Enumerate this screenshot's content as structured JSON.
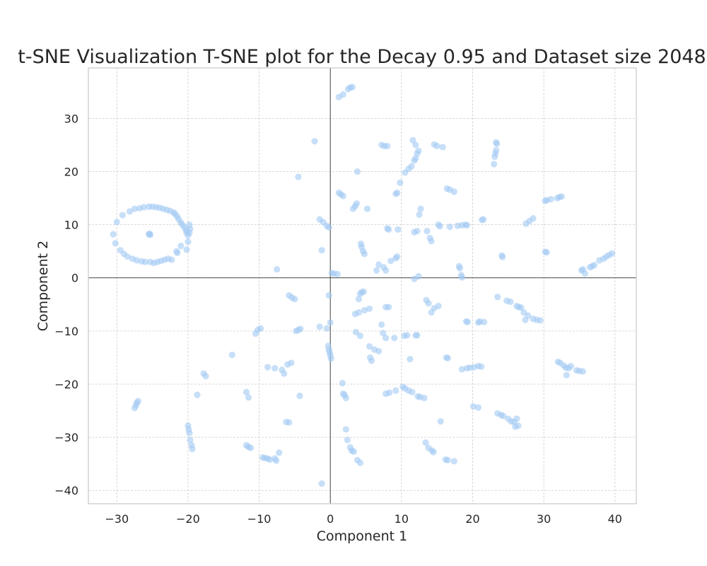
{
  "chart_data": {
    "type": "scatter",
    "title": "t-SNE Visualization T-SNE plot for the Decay 0.95 and Dataset size 2048",
    "xlabel": "Component 1",
    "ylabel": "Component 2",
    "xlim": [
      -34,
      43
    ],
    "ylim": [
      -42.5,
      39.5
    ],
    "xticks": [
      -30,
      -20,
      -10,
      0,
      10,
      20,
      30,
      40
    ],
    "yticks": [
      -40,
      -30,
      -20,
      -10,
      0,
      10,
      20,
      30
    ],
    "grid": true,
    "reference_lines": {
      "x": 0,
      "y": 0
    },
    "colors": {
      "point": "#a1c9f4",
      "grid": "#cccccc",
      "axis_frame": "#cccccc",
      "ref_line": "#333333"
    },
    "series": [
      {
        "name": "points",
        "points": [
          [
            -30.5,
            8.2
          ],
          [
            -30.2,
            6.5
          ],
          [
            -30,
            10.5
          ],
          [
            -29.5,
            5.2
          ],
          [
            -29.2,
            11.8
          ],
          [
            -29,
            4.5
          ],
          [
            -28.5,
            4
          ],
          [
            -28.2,
            12.5
          ],
          [
            -27.8,
            3.6
          ],
          [
            -27.5,
            13
          ],
          [
            -27.2,
            3.3
          ],
          [
            -26.8,
            13.1
          ],
          [
            -26.5,
            3.1
          ],
          [
            -26.2,
            13.3
          ],
          [
            -26,
            3
          ],
          [
            -25.5,
            13.4
          ],
          [
            -25.3,
            3
          ],
          [
            -25,
            13.4
          ],
          [
            -24.8,
            2.8
          ],
          [
            -24.5,
            13.3
          ],
          [
            -24.3,
            3
          ],
          [
            -24,
            13.2
          ],
          [
            -23.8,
            3.2
          ],
          [
            -23.5,
            13
          ],
          [
            -23.3,
            3.4
          ],
          [
            -23,
            12.8
          ],
          [
            -22.8,
            3.6
          ],
          [
            -22.5,
            12.6
          ],
          [
            -22.3,
            3.4
          ],
          [
            -22,
            12.3
          ],
          [
            -21.8,
            12
          ],
          [
            -21.5,
            11.5
          ],
          [
            -21.3,
            11
          ],
          [
            -21,
            10.4
          ],
          [
            -20.8,
            10
          ],
          [
            -20.5,
            9.5
          ],
          [
            -20.3,
            9
          ],
          [
            -20.2,
            8.5
          ],
          [
            -20,
            8
          ],
          [
            -19.8,
            8.5
          ],
          [
            -19.7,
            9.2
          ],
          [
            -19.8,
            10
          ],
          [
            -20,
            6.8
          ],
          [
            -20.2,
            5.3
          ],
          [
            -21,
            6
          ],
          [
            -21.5,
            4.7
          ],
          [
            -21.6,
            5
          ],
          [
            -25.5,
            8.2
          ],
          [
            -25.4,
            8.3
          ],
          [
            -25.3,
            8.1
          ],
          [
            -27.5,
            -24.5
          ],
          [
            -27.3,
            -24
          ],
          [
            -27.2,
            -23.5
          ],
          [
            -27,
            -23.2
          ],
          [
            -20,
            -27.8
          ],
          [
            -19.9,
            -28.5
          ],
          [
            -19.8,
            -29.2
          ],
          [
            -19.7,
            -30.5
          ],
          [
            -19.5,
            -31.5
          ],
          [
            -19.4,
            -32.2
          ],
          [
            -18.7,
            -22
          ],
          [
            -17.8,
            -18
          ],
          [
            -17.5,
            -18.5
          ],
          [
            -13.8,
            -14.5
          ],
          [
            -11.8,
            -21.5
          ],
          [
            -11.5,
            -22.5
          ],
          [
            -11.8,
            -31.5
          ],
          [
            -11.5,
            -31.8
          ],
          [
            -11.2,
            -32
          ],
          [
            -9.5,
            -33.8
          ],
          [
            -9.2,
            -33.9
          ],
          [
            -8.8,
            -34
          ],
          [
            -8.5,
            -34.2
          ],
          [
            -7.8,
            -34
          ],
          [
            -7.6,
            -34.4
          ],
          [
            -7.2,
            -32.9
          ],
          [
            -10.5,
            -10.5
          ],
          [
            -10.2,
            -9.8
          ],
          [
            -9.8,
            -9.5
          ],
          [
            -8.8,
            -16.8
          ],
          [
            -7.8,
            -17
          ],
          [
            -6.8,
            -17.3
          ],
          [
            -6.5,
            -18
          ],
          [
            -6.2,
            -27.1
          ],
          [
            -5.8,
            -27.2
          ],
          [
            -6,
            -16.3
          ],
          [
            -5.5,
            -16
          ],
          [
            -7.5,
            1.6
          ],
          [
            -5.8,
            -3.3
          ],
          [
            -5.4,
            -3.7
          ],
          [
            -5,
            -4
          ],
          [
            -4.8,
            -10
          ],
          [
            -4.5,
            -9.8
          ],
          [
            -4.2,
            -9.6
          ],
          [
            -4.3,
            -22.2
          ],
          [
            -4.5,
            19
          ],
          [
            -1.5,
            11
          ],
          [
            -1,
            10.5
          ],
          [
            -0.5,
            9.8
          ],
          [
            -0.2,
            9.5
          ],
          [
            -1.2,
            5.2
          ],
          [
            -2.2,
            25.7
          ],
          [
            -1.5,
            -9.2
          ],
          [
            -0.5,
            -9.5
          ],
          [
            0,
            -8.4
          ],
          [
            0.2,
            0.9
          ],
          [
            0.5,
            0.8
          ],
          [
            1,
            0.7
          ],
          [
            -0.2,
            -3.3
          ],
          [
            -0.3,
            -12.8
          ],
          [
            -0.2,
            -13.5
          ],
          [
            -0.1,
            -14
          ],
          [
            0,
            -14.6
          ],
          [
            0.1,
            -15.2
          ],
          [
            -1.2,
            -38.7
          ],
          [
            1.2,
            34
          ],
          [
            1.8,
            34.5
          ],
          [
            2.5,
            35.5
          ],
          [
            2.8,
            35.8
          ],
          [
            3.1,
            35.9
          ],
          [
            1.2,
            16
          ],
          [
            1.5,
            15.7
          ],
          [
            1.8,
            15.4
          ],
          [
            3.2,
            13
          ],
          [
            3.5,
            13.5
          ],
          [
            3.7,
            14
          ],
          [
            3.8,
            20
          ],
          [
            4.3,
            6.4
          ],
          [
            4.4,
            5.8
          ],
          [
            4.6,
            5
          ],
          [
            4.8,
            4.5
          ],
          [
            5.2,
            13
          ],
          [
            6.8,
            2.5
          ],
          [
            7.5,
            2
          ],
          [
            6.5,
            1.4
          ],
          [
            7.8,
            1.4
          ],
          [
            4.4,
            -2.7
          ],
          [
            4.7,
            -2.6
          ],
          [
            4.2,
            -3
          ],
          [
            4,
            -4
          ],
          [
            3.5,
            -6.8
          ],
          [
            4,
            -6.5
          ],
          [
            4.8,
            -6.1
          ],
          [
            5.5,
            -5.8
          ],
          [
            3.6,
            -10.2
          ],
          [
            4.2,
            -10.9
          ],
          [
            5.5,
            -12.9
          ],
          [
            6.2,
            -13.5
          ],
          [
            6.8,
            -13.8
          ],
          [
            5.6,
            -15
          ],
          [
            5.8,
            -15.6
          ],
          [
            7.2,
            -8.8
          ],
          [
            7.4,
            -10.4
          ],
          [
            7.8,
            -11.3
          ],
          [
            1.7,
            -19.8
          ],
          [
            1.8,
            -21.8
          ],
          [
            2,
            -22
          ],
          [
            2.2,
            -22.6
          ],
          [
            2.2,
            -28.5
          ],
          [
            2.4,
            -30.5
          ],
          [
            2.8,
            -31.9
          ],
          [
            3,
            -32.5
          ],
          [
            3.3,
            -32.7
          ],
          [
            3.8,
            -34.3
          ],
          [
            4.2,
            -34.8
          ],
          [
            7.2,
            25
          ],
          [
            7.6,
            24.8
          ],
          [
            8,
            24.8
          ],
          [
            7.8,
            -5.5
          ],
          [
            8.2,
            -5.5
          ],
          [
            8.5,
            3.2
          ],
          [
            9.2,
            3.7
          ],
          [
            9.4,
            4
          ],
          [
            8,
            9.3
          ],
          [
            8.2,
            9.1
          ],
          [
            9.5,
            9.1
          ],
          [
            9.2,
            15.8
          ],
          [
            9.4,
            16
          ],
          [
            9.8,
            17.9
          ],
          [
            9,
            -11.3
          ],
          [
            10.4,
            -10.9
          ],
          [
            10.8,
            -10.8
          ],
          [
            10.5,
            19.8
          ],
          [
            11,
            20.5
          ],
          [
            11.4,
            21
          ],
          [
            11.8,
            22.1
          ],
          [
            12,
            22.5
          ],
          [
            12.2,
            23.4
          ],
          [
            12.4,
            23.9
          ],
          [
            11.6,
            25.9
          ],
          [
            12,
            25
          ],
          [
            11.8,
            8.6
          ],
          [
            12.2,
            8.8
          ],
          [
            11.8,
            -0.2
          ],
          [
            12.4,
            0.3
          ],
          [
            12.5,
            11.9
          ],
          [
            12.7,
            13
          ],
          [
            12,
            -10.8
          ],
          [
            12.2,
            -10.8
          ],
          [
            7.8,
            -21.8
          ],
          [
            8.3,
            -21.6
          ],
          [
            9.2,
            -21.2
          ],
          [
            10.2,
            -20.5
          ],
          [
            10.5,
            -20.8
          ],
          [
            11,
            -21.2
          ],
          [
            11.5,
            -21.5
          ],
          [
            12.3,
            -22.3
          ],
          [
            12.6,
            -22.4
          ],
          [
            13.2,
            -22.6
          ],
          [
            11.2,
            -15.3
          ],
          [
            13.4,
            -31
          ],
          [
            13.8,
            -32
          ],
          [
            14.3,
            -32.5
          ],
          [
            14.5,
            -32.8
          ],
          [
            13.5,
            -4.2
          ],
          [
            13.8,
            -4.8
          ],
          [
            14.2,
            -6.5
          ],
          [
            14.6,
            -5.7
          ],
          [
            15.2,
            -5.3
          ],
          [
            13.6,
            8.8
          ],
          [
            14,
            7.5
          ],
          [
            14.2,
            6.9
          ],
          [
            14.6,
            25.1
          ],
          [
            15,
            24.8
          ],
          [
            15.8,
            24.6
          ],
          [
            15.2,
            10
          ],
          [
            15.4,
            9.7
          ],
          [
            16.4,
            16.8
          ],
          [
            16.8,
            16.6
          ],
          [
            17.4,
            16.2
          ],
          [
            16.8,
            9.6
          ],
          [
            15.5,
            -27
          ],
          [
            16.2,
            -34.2
          ],
          [
            16.5,
            -34.3
          ],
          [
            17.4,
            -34.5
          ],
          [
            16.3,
            -15
          ],
          [
            16.5,
            -15.1
          ],
          [
            18.1,
            2.2
          ],
          [
            18.2,
            1.8
          ],
          [
            18.4,
            0.5
          ],
          [
            18.5,
            0.1
          ],
          [
            17.9,
            9.8
          ],
          [
            18.5,
            9.9
          ],
          [
            19,
            10
          ],
          [
            19.2,
            9.9
          ],
          [
            18.5,
            -17.2
          ],
          [
            19.2,
            -17
          ],
          [
            19.6,
            -16.9
          ],
          [
            19.1,
            -8.2
          ],
          [
            19.3,
            -8.3
          ],
          [
            20.2,
            -16.8
          ],
          [
            20.8,
            -16.6
          ],
          [
            21.2,
            -16.7
          ],
          [
            20.8,
            -8.4
          ],
          [
            21,
            -8.2
          ],
          [
            21.6,
            -8.3
          ],
          [
            20.1,
            -24.2
          ],
          [
            20.8,
            -24.4
          ],
          [
            21.5,
            11
          ],
          [
            21.3,
            10.9
          ],
          [
            23,
            21.4
          ],
          [
            23.1,
            22.8
          ],
          [
            23.2,
            23.4
          ],
          [
            23.3,
            24
          ],
          [
            23.3,
            25.5
          ],
          [
            23.4,
            25.2
          ],
          [
            23.5,
            -3.6
          ],
          [
            23.5,
            -25.5
          ],
          [
            24,
            -25.8
          ],
          [
            24.3,
            -26
          ],
          [
            24.1,
            4.2
          ],
          [
            24.2,
            3.9
          ],
          [
            24.8,
            -4.3
          ],
          [
            25.3,
            -4.5
          ],
          [
            25,
            -26.5
          ],
          [
            25.4,
            -27
          ],
          [
            25.8,
            -27.1
          ],
          [
            26,
            -28
          ],
          [
            26.2,
            -26.5
          ],
          [
            26.4,
            -27.8
          ],
          [
            26.2,
            -5.3
          ],
          [
            26.5,
            -5.5
          ],
          [
            26.8,
            -5.6
          ],
          [
            27.2,
            -6.5
          ],
          [
            27.4,
            -7.9
          ],
          [
            27.8,
            -7.1
          ],
          [
            28.5,
            -7.7
          ],
          [
            29,
            -7.9
          ],
          [
            29.5,
            -8
          ],
          [
            27.5,
            10.2
          ],
          [
            28,
            10.7
          ],
          [
            28.5,
            11.2
          ],
          [
            30.2,
            14.5
          ],
          [
            30.4,
            14.6
          ],
          [
            31,
            14.8
          ],
          [
            31.9,
            15
          ],
          [
            32.2,
            15.2
          ],
          [
            32.5,
            15.3
          ],
          [
            30.2,
            4.9
          ],
          [
            30.4,
            4.8
          ],
          [
            32,
            -15.8
          ],
          [
            32.3,
            -16
          ],
          [
            32.8,
            -16.5
          ],
          [
            33.1,
            -16.9
          ],
          [
            33.5,
            -17
          ],
          [
            33.8,
            -16.6
          ],
          [
            33.2,
            -18.3
          ],
          [
            34.6,
            -17.4
          ],
          [
            35,
            -17.5
          ],
          [
            35.5,
            -17.6
          ],
          [
            35.3,
            1.4
          ],
          [
            35.5,
            1.6
          ],
          [
            35.8,
            0.8
          ],
          [
            36.5,
            2
          ],
          [
            36.8,
            2.2
          ],
          [
            37.1,
            2.4
          ],
          [
            37.8,
            3.3
          ],
          [
            38.4,
            3.6
          ],
          [
            38.8,
            4
          ],
          [
            39.2,
            4.3
          ],
          [
            39.6,
            4.6
          ]
        ]
      }
    ]
  }
}
